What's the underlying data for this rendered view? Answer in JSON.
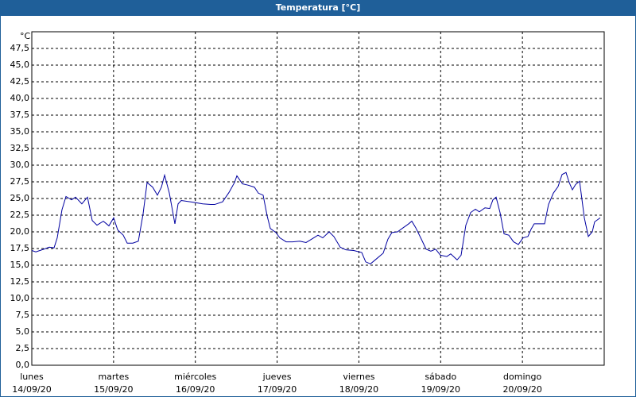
{
  "chart_data": {
    "type": "line",
    "title": "Temperatura [°C]",
    "y_unit": "°C",
    "x": [
      0,
      0.049,
      0.146,
      0.214,
      0.272,
      0.311,
      0.369,
      0.418,
      0.486,
      0.535,
      0.612,
      0.681,
      0.739,
      0.797,
      0.875,
      0.943,
      1.001,
      1.05,
      1.118,
      1.167,
      1.235,
      1.303,
      1.361,
      1.41,
      1.478,
      1.536,
      1.585,
      1.624,
      1.682,
      1.75,
      1.789,
      1.828,
      1.944,
      2.09,
      2.187,
      2.236,
      2.333,
      2.411,
      2.479,
      2.508,
      2.576,
      2.644,
      2.722,
      2.771,
      2.829,
      2.878,
      2.917,
      2.985,
      3.033,
      3.111,
      3.189,
      3.276,
      3.354,
      3.422,
      3.5,
      3.558,
      3.636,
      3.694,
      3.772,
      3.84,
      3.937,
      4.035,
      4.083,
      4.142,
      4.21,
      4.297,
      4.355,
      4.404,
      4.472,
      4.54,
      4.608,
      4.647,
      4.696,
      4.764,
      4.822,
      4.88,
      4.939,
      4.997,
      5.075,
      5.123,
      5.201,
      5.25,
      5.308,
      5.367,
      5.425,
      5.473,
      5.542,
      5.6,
      5.639,
      5.678,
      5.726,
      5.775,
      5.833,
      5.892,
      5.95,
      6.008,
      6.067,
      6.106,
      6.144,
      6.222,
      6.271,
      6.319,
      6.378,
      6.436,
      6.485,
      6.533,
      6.572,
      6.611,
      6.65,
      6.699,
      6.757,
      6.806,
      6.854,
      6.883,
      6.951
    ],
    "series": [
      {
        "name": "Temperatura",
        "color": "#0000a0",
        "values": [
          17.2,
          17.0,
          17.4,
          17.7,
          17.6,
          19.1,
          23.3,
          25.3,
          24.8,
          25.2,
          24.2,
          25.2,
          21.7,
          21.0,
          21.6,
          20.9,
          22.1,
          20.3,
          19.5,
          18.3,
          18.3,
          18.6,
          22.7,
          27.4,
          26.7,
          25.5,
          26.7,
          28.5,
          25.8,
          21.2,
          24.2,
          24.7,
          24.5,
          24.2,
          24.1,
          24.1,
          24.5,
          25.9,
          27.4,
          28.4,
          27.2,
          27.0,
          26.7,
          25.8,
          25.5,
          22.4,
          20.5,
          19.9,
          19.1,
          18.5,
          18.5,
          18.6,
          18.4,
          18.9,
          19.5,
          19.1,
          20.0,
          19.3,
          17.7,
          17.3,
          17.2,
          16.9,
          15.5,
          15.2,
          15.9,
          16.8,
          18.9,
          19.9,
          20.0,
          20.6,
          21.2,
          21.6,
          20.6,
          18.9,
          17.4,
          17.1,
          17.4,
          16.5,
          16.3,
          16.7,
          15.8,
          16.5,
          21.0,
          22.9,
          23.4,
          23.0,
          23.6,
          23.5,
          24.8,
          25.2,
          22.9,
          19.7,
          19.5,
          18.5,
          18.1,
          19.1,
          19.3,
          20.4,
          21.2,
          21.2,
          21.2,
          24.1,
          25.8,
          26.8,
          28.6,
          28.9,
          27.4,
          26.3,
          27.1,
          27.6,
          22.1,
          19.3,
          20.0,
          21.5,
          22.1
        ]
      }
    ],
    "xlim": [
      0,
      7
    ],
    "xticks": [
      {
        "value": 0,
        "label": [
          "lunes",
          "14/09/20"
        ]
      },
      {
        "value": 1,
        "label": [
          "martes",
          "15/09/20"
        ]
      },
      {
        "value": 2,
        "label": [
          "miércoles",
          "16/09/20"
        ]
      },
      {
        "value": 3,
        "label": [
          "jueves",
          "17/09/20"
        ]
      },
      {
        "value": 4,
        "label": [
          "viernes",
          "18/09/20"
        ]
      },
      {
        "value": 5,
        "label": [
          "sábado",
          "19/09/20"
        ]
      },
      {
        "value": 6,
        "label": [
          "domingo",
          "20/09/20"
        ]
      }
    ],
    "ylim": [
      0,
      50
    ],
    "yticks": [
      {
        "value": 0,
        "label": "0,0"
      },
      {
        "value": 2.5,
        "label": "2,5"
      },
      {
        "value": 5,
        "label": "5,0"
      },
      {
        "value": 7.5,
        "label": "7,5"
      },
      {
        "value": 10,
        "label": "10,0"
      },
      {
        "value": 12.5,
        "label": "12,5"
      },
      {
        "value": 15,
        "label": "15,0"
      },
      {
        "value": 17.5,
        "label": "17,5"
      },
      {
        "value": 20,
        "label": "20,0"
      },
      {
        "value": 22.5,
        "label": "22,5"
      },
      {
        "value": 25,
        "label": "25,0"
      },
      {
        "value": 27.5,
        "label": "27,5"
      },
      {
        "value": 30,
        "label": "30,0"
      },
      {
        "value": 32.5,
        "label": "32,5"
      },
      {
        "value": 35,
        "label": "35,0"
      },
      {
        "value": 37.5,
        "label": "37,5"
      },
      {
        "value": 40,
        "label": "40,0"
      },
      {
        "value": 42.5,
        "label": "42,5"
      },
      {
        "value": 45,
        "label": "45,0"
      },
      {
        "value": 47.5,
        "label": "47,5"
      }
    ],
    "grid": true
  }
}
